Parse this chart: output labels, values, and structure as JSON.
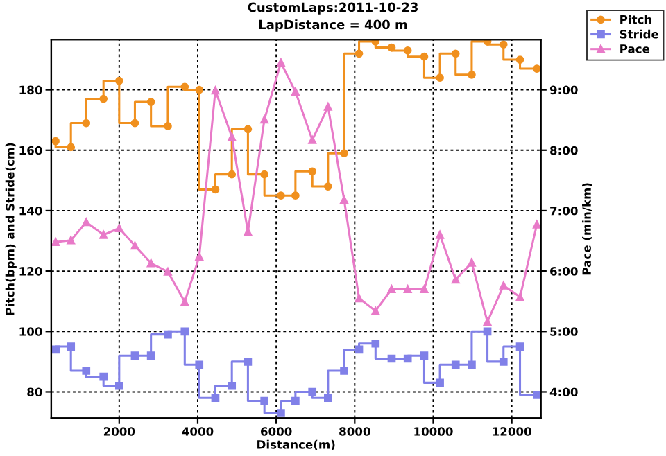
{
  "chart_data": {
    "type": "line",
    "title": "CustomLaps:2011-10-23",
    "subtitle": "LapDistance = 400 m",
    "xlabel": "Distance(m)",
    "ylabel": "Pitch(bpm) and Stride(cm)",
    "y2label": "Pace (min/km)",
    "x": [
      380,
      770,
      1160,
      1600,
      2000,
      2400,
      2810,
      3240,
      3670,
      4040,
      4450,
      4870,
      5280,
      5700,
      6120,
      6490,
      6920,
      7320,
      7730,
      8110,
      8530,
      8940,
      9350,
      9770,
      10170,
      10570,
      10980,
      11380,
      11790,
      12210,
      12640
    ],
    "series": [
      {
        "name": "Pitch",
        "type": "step",
        "color": "#f0901e",
        "marker": "circle",
        "values": [
          163,
          161,
          169,
          177,
          183,
          169,
          176,
          168,
          181,
          180,
          147,
          152,
          167,
          152,
          145,
          145,
          153,
          148,
          159,
          192,
          196,
          194,
          193,
          191,
          184,
          192,
          185,
          196,
          195,
          190,
          187
        ]
      },
      {
        "name": "Stride",
        "type": "step",
        "color": "#8080e8",
        "marker": "square",
        "values": [
          94,
          95,
          87,
          85,
          82,
          92,
          92,
          99,
          100,
          89,
          78,
          82,
          90,
          77,
          73,
          77,
          80,
          78,
          87,
          94,
          96,
          91,
          91,
          92,
          83,
          89,
          89,
          100,
          90,
          95,
          79
        ]
      },
      {
        "name": "Pace",
        "color": "#e87ac8",
        "marker": "triangle",
        "axis": "y2",
        "values": [
          6.48,
          6.51,
          6.81,
          6.6,
          6.71,
          6.42,
          6.13,
          5.99,
          5.49,
          6.24,
          8.99,
          8.22,
          6.65,
          8.51,
          9.45,
          8.97,
          8.17,
          8.72,
          7.18,
          5.55,
          5.34,
          5.7,
          5.7,
          5.7,
          6.6,
          5.86,
          6.14,
          5.16,
          5.76,
          5.57,
          6.77
        ]
      }
    ],
    "xlim": [
      270,
      12740
    ],
    "xticks": [
      2000,
      4000,
      6000,
      8000,
      10000,
      12000
    ],
    "ylim": [
      71.3,
      196.6
    ],
    "yticks": [
      80,
      100,
      120,
      140,
      160,
      180
    ],
    "y2lim": [
      3.565,
      9.83
    ],
    "y2ticks": [
      {
        "value": 4,
        "label": "4:00"
      },
      {
        "value": 5,
        "label": "5:00"
      },
      {
        "value": 6,
        "label": "6:00"
      },
      {
        "value": 7,
        "label": "7:00"
      },
      {
        "value": 8,
        "label": "8:00"
      },
      {
        "value": 9,
        "label": "9:00"
      }
    ],
    "grid": true,
    "line_style": "solid",
    "legend": "right"
  }
}
